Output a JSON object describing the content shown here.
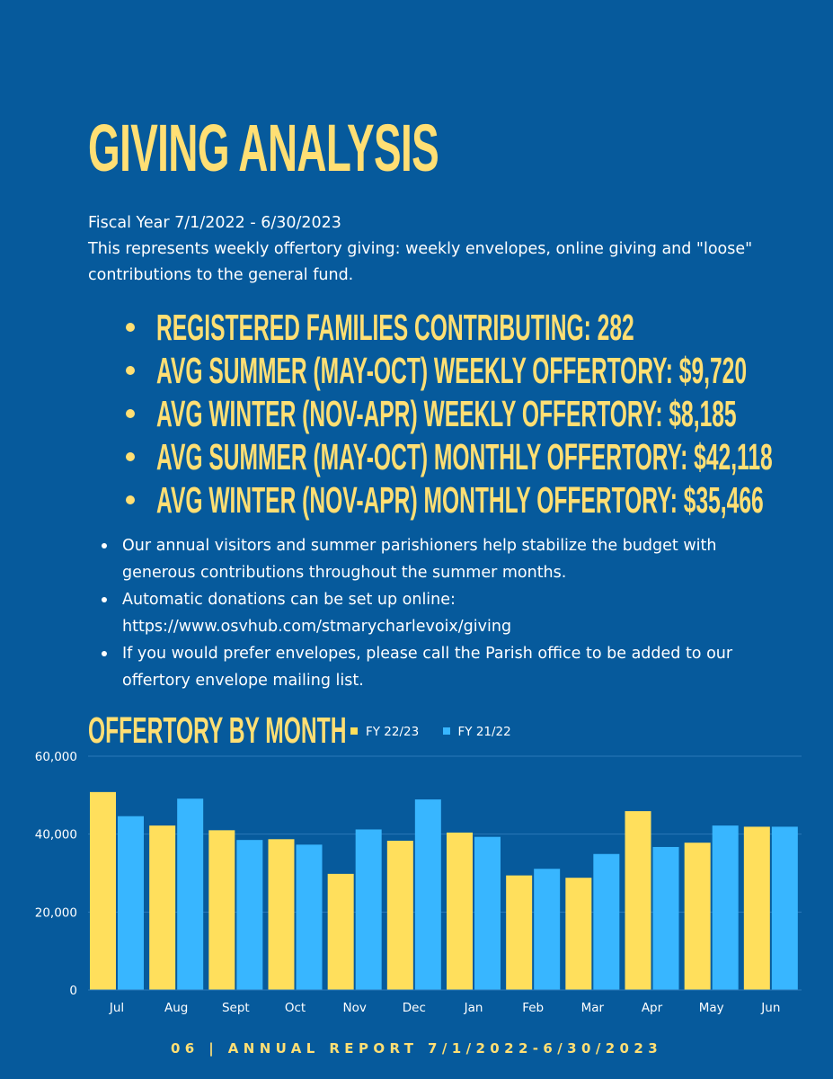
{
  "title": "GIVING ANALYSIS",
  "fiscal_year": "Fiscal Year 7/1/2022 - 6/30/2023",
  "description": "This represents weekly offertory giving: weekly envelopes, online giving and \"loose\" contributions to the general fund.",
  "stats": [
    "REGISTERED FAMILIES CONTRIBUTING: 282",
    "AVG SUMMER (MAY-OCT) WEEKLY OFFERTORY: $9,720",
    "AVG WINTER (NOV-APR) WEEKLY OFFERTORY: $8,185",
    "AVG SUMMER (MAY-OCT) MONTHLY OFFERTORY: $42,118",
    "AVG WINTER (NOV-APR) MONTHLY OFFERTORY: $35,466"
  ],
  "notes": [
    "Our annual visitors and summer parishioners help stabilize the budget with generous contributions throughout the summer months.",
    "Automatic donations can be set up online: https://www.osvhub.com/stmarycharlevoix/giving",
    "If you would prefer envelopes, please call the Parish office to be added to our offertory envelope mailing list."
  ],
  "footer": "06 | ANNUAL REPORT 7/1/2022-6/30/2023",
  "colors": {
    "background": "#065a9c",
    "accent_yellow": "#ffdf5c",
    "accent_blue": "#38b6ff"
  },
  "chart_data": {
    "type": "bar",
    "title": "OFFERTORY BY MONTH",
    "categories": [
      "Jul",
      "Aug",
      "Sept",
      "Oct",
      "Nov",
      "Dec",
      "Jan",
      "Feb",
      "Mar",
      "Apr",
      "May",
      "Jun"
    ],
    "series": [
      {
        "name": "FY 22/23",
        "color": "#ffdf5c",
        "values": [
          50800,
          42200,
          41000,
          38700,
          29800,
          38300,
          40400,
          29400,
          28800,
          45900,
          37800,
          41900
        ]
      },
      {
        "name": "FY 21/22",
        "color": "#38b6ff",
        "values": [
          44600,
          49100,
          38500,
          37300,
          41200,
          48900,
          39300,
          31100,
          34900,
          36700,
          42200,
          41900
        ]
      }
    ],
    "y_ticks": [
      "0",
      "20,000",
      "40,000",
      "60,000"
    ],
    "ylim": [
      0,
      60000
    ],
    "grid": true,
    "legend": "top"
  }
}
